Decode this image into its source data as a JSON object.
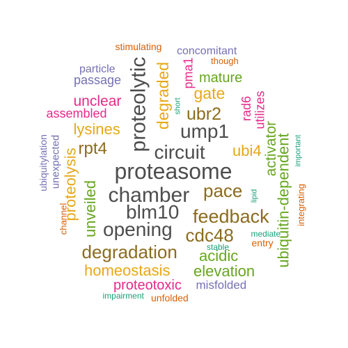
{
  "words": [
    {
      "text": "proteasome",
      "color": "#4d4d4d",
      "vertical": false
    },
    {
      "text": "chamber",
      "color": "#4d4d4d",
      "vertical": false
    },
    {
      "text": "proteolytic",
      "color": "#4d4d4d",
      "vertical": true
    },
    {
      "text": "circuit",
      "color": "#4d4d4d",
      "vertical": false
    },
    {
      "text": "blm10",
      "color": "#4d4d4d",
      "vertical": false
    },
    {
      "text": "opening",
      "color": "#4d4d4d",
      "vertical": false
    },
    {
      "text": "ump1",
      "color": "#4d4d4d",
      "vertical": false
    },
    {
      "text": "feedback",
      "color": "#8c6b1e",
      "vertical": false
    },
    {
      "text": "degradation",
      "color": "#8c6b1e",
      "vertical": false
    },
    {
      "text": "pace",
      "color": "#8c6b1e",
      "vertical": false
    },
    {
      "text": "cdc48",
      "color": "#8c6b1e",
      "vertical": false
    },
    {
      "text": "rpt4",
      "color": "#8c6b1e",
      "vertical": false
    },
    {
      "text": "ubr2",
      "color": "#8c6b1e",
      "vertical": false
    },
    {
      "text": "degraded",
      "color": "#e6a817",
      "vertical": true
    },
    {
      "text": "homeostasis",
      "color": "#e6a817",
      "vertical": false
    },
    {
      "text": "lysines",
      "color": "#e6a817",
      "vertical": false
    },
    {
      "text": "ubi4",
      "color": "#e6a817",
      "vertical": false
    },
    {
      "text": "gate",
      "color": "#e6a817",
      "vertical": false
    },
    {
      "text": "proteolysis",
      "color": "#e6a817",
      "vertical": true
    },
    {
      "text": "elevation",
      "color": "#66a61e",
      "vertical": false
    },
    {
      "text": "acidic",
      "color": "#66a61e",
      "vertical": false
    },
    {
      "text": "unveiled",
      "color": "#66a61e",
      "vertical": true
    },
    {
      "text": "ubiquitin-dependent",
      "color": "#66a61e",
      "vertical": true
    },
    {
      "text": "activator",
      "color": "#66a61e",
      "vertical": true
    },
    {
      "text": "mature",
      "color": "#66a61e",
      "vertical": false
    },
    {
      "text": "proteotoxic",
      "color": "#e7298a",
      "vertical": false
    },
    {
      "text": "unclear",
      "color": "#e7298a",
      "vertical": false
    },
    {
      "text": "assembled",
      "color": "#e7298a",
      "vertical": false
    },
    {
      "text": "utilizes",
      "color": "#e7298a",
      "vertical": true
    },
    {
      "text": "rad6",
      "color": "#e7298a",
      "vertical": true
    },
    {
      "text": "pma1",
      "color": "#e7298a",
      "vertical": true
    },
    {
      "text": "misfolded",
      "color": "#7570b3",
      "vertical": false
    },
    {
      "text": "passage",
      "color": "#7570b3",
      "vertical": false
    },
    {
      "text": "particle",
      "color": "#7570b3",
      "vertical": false
    },
    {
      "text": "concomitant",
      "color": "#7570b3",
      "vertical": false
    },
    {
      "text": "unexpected",
      "color": "#7570b3",
      "vertical": true
    },
    {
      "text": "ubiquitylation",
      "color": "#7570b3",
      "vertical": true
    },
    {
      "text": "unfolded",
      "color": "#d95f02",
      "vertical": false
    },
    {
      "text": "stimulating",
      "color": "#d95f02",
      "vertical": false
    },
    {
      "text": "though",
      "color": "#d95f02",
      "vertical": false
    },
    {
      "text": "entry",
      "color": "#d95f02",
      "vertical": false
    },
    {
      "text": "channel",
      "color": "#d95f02",
      "vertical": true
    },
    {
      "text": "integrating",
      "color": "#d95f02",
      "vertical": true
    },
    {
      "text": "impairment",
      "color": "#1b9e77",
      "vertical": false
    },
    {
      "text": "stable",
      "color": "#1b9e77",
      "vertical": false
    },
    {
      "text": "mediate",
      "color": "#1b9e77",
      "vertical": false
    },
    {
      "text": "short",
      "color": "#1b9e77",
      "vertical": true
    },
    {
      "text": "lipid",
      "color": "#1b9e77",
      "vertical": true
    },
    {
      "text": "important",
      "color": "#1b9e77",
      "vertical": true
    }
  ]
}
